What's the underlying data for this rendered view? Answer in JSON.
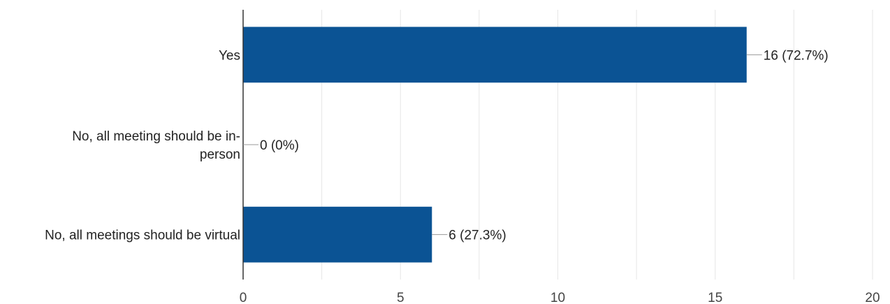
{
  "chart_data": {
    "type": "bar",
    "orientation": "horizontal",
    "categories": [
      [
        "Yes"
      ],
      [
        "No, all meeting should be in-",
        "person"
      ],
      [
        "No, all meetings should be virtual"
      ]
    ],
    "values": [
      16,
      0,
      6
    ],
    "data_labels": [
      "16 (72.7%)",
      "0 (0%)",
      "6 (27.3%)"
    ],
    "xlim": [
      0,
      20
    ],
    "xticks": [
      0,
      5,
      10,
      15,
      20
    ],
    "xtick_labels": [
      "0",
      "5",
      "10",
      "15",
      "20"
    ],
    "grid": true,
    "bar_color": "#0b5394",
    "title": "",
    "xlabel": "",
    "ylabel": ""
  }
}
